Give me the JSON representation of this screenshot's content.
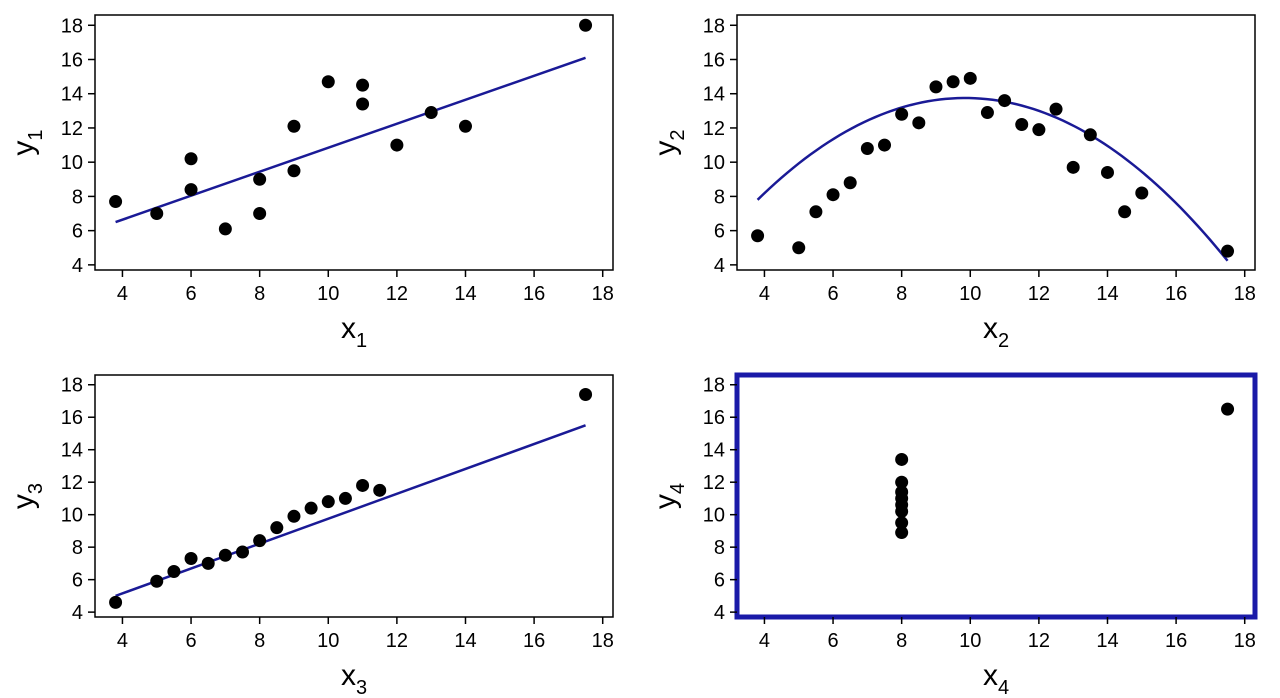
{
  "chart_data": [
    {
      "type": "scatter",
      "xlabel": "x",
      "xlabel_sub": "1",
      "ylabel": "y",
      "ylabel_sub": "1",
      "xlim": [
        3.2,
        18.3
      ],
      "ylim": [
        3.7,
        18.6
      ],
      "xticks": [
        4,
        6,
        8,
        10,
        12,
        14,
        16,
        18
      ],
      "yticks": [
        4,
        6,
        8,
        10,
        12,
        14,
        16,
        18
      ],
      "grid": false,
      "points": [
        [
          3.8,
          7.7
        ],
        [
          5,
          7.0
        ],
        [
          6,
          10.2
        ],
        [
          6,
          8.4
        ],
        [
          7,
          6.1
        ],
        [
          8,
          9.0
        ],
        [
          8,
          7.0
        ],
        [
          9,
          12.1
        ],
        [
          9,
          9.5
        ],
        [
          10,
          14.7
        ],
        [
          11,
          14.5
        ],
        [
          11,
          13.4
        ],
        [
          12,
          11.0
        ],
        [
          13,
          12.9
        ],
        [
          14,
          12.1
        ],
        [
          17.5,
          18.0
        ]
      ],
      "fit": {
        "kind": "line",
        "x": [
          3.8,
          17.5
        ],
        "y": [
          6.5,
          16.1
        ]
      },
      "highlighted": false,
      "line_color": "#1a1a96"
    },
    {
      "type": "scatter",
      "xlabel": "x",
      "xlabel_sub": "2",
      "ylabel": "y",
      "ylabel_sub": "2",
      "xlim": [
        3.2,
        18.3
      ],
      "ylim": [
        3.7,
        18.6
      ],
      "xticks": [
        4,
        6,
        8,
        10,
        12,
        14,
        16,
        18
      ],
      "yticks": [
        4,
        6,
        8,
        10,
        12,
        14,
        16,
        18
      ],
      "grid": false,
      "points": [
        [
          3.8,
          5.7
        ],
        [
          5,
          5.0
        ],
        [
          5.5,
          7.1
        ],
        [
          6,
          8.1
        ],
        [
          6.5,
          8.8
        ],
        [
          7,
          10.8
        ],
        [
          7.5,
          11.0
        ],
        [
          8,
          12.8
        ],
        [
          8.5,
          12.3
        ],
        [
          9,
          14.4
        ],
        [
          9.5,
          14.7
        ],
        [
          10,
          14.9
        ],
        [
          10.5,
          12.9
        ],
        [
          11,
          13.6
        ],
        [
          11.5,
          12.2
        ],
        [
          12,
          11.9
        ],
        [
          12.5,
          13.1
        ],
        [
          13,
          9.7
        ],
        [
          13.5,
          11.6
        ],
        [
          14,
          9.4
        ],
        [
          14.5,
          7.1
        ],
        [
          15,
          8.2
        ],
        [
          17.5,
          4.8
        ]
      ],
      "fit": {
        "kind": "quadratic",
        "vertex_x": 9.85,
        "vertex_y": 13.75,
        "a": -0.1625,
        "x_range": [
          3.8,
          17.5
        ]
      },
      "highlighted": false,
      "line_color": "#1a1a96"
    },
    {
      "type": "scatter",
      "xlabel": "x",
      "xlabel_sub": "3",
      "ylabel": "y",
      "ylabel_sub": "3",
      "xlim": [
        3.2,
        18.3
      ],
      "ylim": [
        3.7,
        18.6
      ],
      "xticks": [
        4,
        6,
        8,
        10,
        12,
        14,
        16,
        18
      ],
      "yticks": [
        4,
        6,
        8,
        10,
        12,
        14,
        16,
        18
      ],
      "grid": false,
      "points": [
        [
          3.8,
          4.6
        ],
        [
          5,
          5.9
        ],
        [
          5.5,
          6.5
        ],
        [
          6,
          7.3
        ],
        [
          6.5,
          7.0
        ],
        [
          7,
          7.5
        ],
        [
          7.5,
          7.7
        ],
        [
          8,
          8.4
        ],
        [
          8.5,
          9.2
        ],
        [
          9,
          9.9
        ],
        [
          9.5,
          10.4
        ],
        [
          10,
          10.8
        ],
        [
          10.5,
          11.0
        ],
        [
          11,
          11.8
        ],
        [
          11.5,
          11.5
        ],
        [
          17.5,
          17.4
        ]
      ],
      "fit": {
        "kind": "line",
        "x": [
          3.8,
          17.5
        ],
        "y": [
          5.0,
          15.5
        ]
      },
      "highlighted": false,
      "line_color": "#1a1a96"
    },
    {
      "type": "scatter",
      "xlabel": "x",
      "xlabel_sub": "4",
      "ylabel": "y",
      "ylabel_sub": "4",
      "xlim": [
        3.2,
        18.3
      ],
      "ylim": [
        3.7,
        18.6
      ],
      "xticks": [
        4,
        6,
        8,
        10,
        12,
        14,
        16,
        18
      ],
      "yticks": [
        4,
        6,
        8,
        10,
        12,
        14,
        16,
        18
      ],
      "grid": false,
      "points": [
        [
          8,
          13.4
        ],
        [
          8,
          12.0
        ],
        [
          8,
          11.4
        ],
        [
          8,
          11.0
        ],
        [
          8,
          10.6
        ],
        [
          8,
          10.2
        ],
        [
          8,
          9.5
        ],
        [
          8,
          8.9
        ],
        [
          17.5,
          16.5
        ]
      ],
      "fit": null,
      "highlighted": true,
      "frame_color": "#1a1aa8"
    }
  ]
}
